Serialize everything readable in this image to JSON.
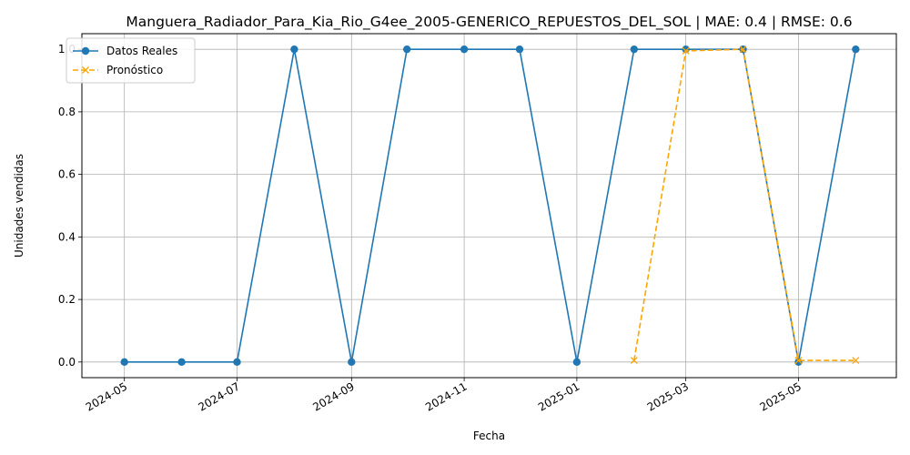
{
  "chart_data": {
    "type": "line",
    "title": "Manguera_Radiador_Para_Kia_Rio_G4ee_2005-GENERICO_REPUESTOS_DEL_SOL | MAE: 0.4 | RMSE: 0.6",
    "xlabel": "Fecha",
    "ylabel": "Unidades vendidas",
    "xlim": [
      "2024-04-08",
      "2025-06-23"
    ],
    "ylim": [
      -0.05,
      1.05
    ],
    "x_ticks": [
      "2024-05",
      "2024-07",
      "2024-09",
      "2024-11",
      "2025-01",
      "2025-03",
      "2025-05"
    ],
    "y_ticks": [
      "0.0",
      "0.2",
      "0.4",
      "0.6",
      "0.8",
      "1.0"
    ],
    "grid": true,
    "legend": "upper-left",
    "series": [
      {
        "name": "Datos Reales",
        "color": "#1f77b4",
        "style": "solid",
        "marker": "circle",
        "x": [
          "2024-05-01",
          "2024-06-01",
          "2024-07-01",
          "2024-08-01",
          "2024-09-01",
          "2024-10-01",
          "2024-11-01",
          "2024-12-01",
          "2025-01-01",
          "2025-02-01",
          "2025-03-01",
          "2025-04-01",
          "2025-05-01",
          "2025-06-01"
        ],
        "values": [
          0,
          0,
          0,
          1,
          0,
          1,
          1,
          1,
          0,
          1,
          1,
          1,
          0,
          1
        ]
      },
      {
        "name": "Pronóstico",
        "color": "#ffa500",
        "style": "dashed",
        "marker": "x",
        "x": [
          "2025-02-01",
          "2025-03-01",
          "2025-04-01",
          "2025-05-01",
          "2025-06-01"
        ],
        "values": [
          0.005,
          0.995,
          1.0,
          0.005,
          0.005
        ]
      }
    ]
  }
}
